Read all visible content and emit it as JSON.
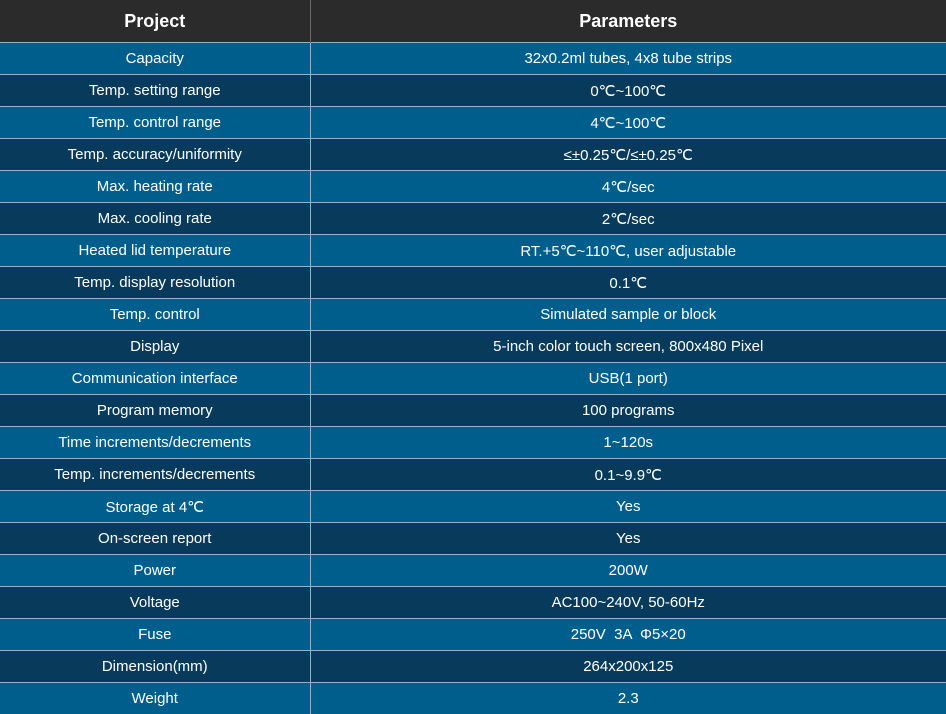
{
  "header": {
    "col1": "Project",
    "col2": "Parameters"
  },
  "rows": [
    {
      "project": "Capacity",
      "parameters": "32x0.2ml tubes, 4x8 tube strips"
    },
    {
      "project": "Temp. setting range",
      "parameters": "0℃~100℃"
    },
    {
      "project": "Temp. control range",
      "parameters": "4℃~100℃"
    },
    {
      "project": "Temp. accuracy/uniformity",
      "parameters": "≤±0.25℃/≤±0.25℃"
    },
    {
      "project": "Max. heating rate",
      "parameters": "4℃/sec"
    },
    {
      "project": "Max. cooling rate",
      "parameters": "2℃/sec"
    },
    {
      "project": "Heated lid temperature",
      "parameters": "RT.+5℃~110℃, user adjustable"
    },
    {
      "project": "Temp. display resolution",
      "parameters": "0.1℃"
    },
    {
      "project": "Temp. control",
      "parameters": "Simulated sample or block"
    },
    {
      "project": "Display",
      "parameters": "5-inch color touch screen, 800x480 Pixel"
    },
    {
      "project": "Communication interface",
      "parameters": "USB(1 port)"
    },
    {
      "project": "Program memory",
      "parameters": "100 programs"
    },
    {
      "project": "Time increments/decrements",
      "parameters": "1~120s"
    },
    {
      "project": "Temp. increments/decrements",
      "parameters": "0.1~9.9℃"
    },
    {
      "project": "Storage at 4℃",
      "parameters": "Yes"
    },
    {
      "project": "On-screen report",
      "parameters": "Yes"
    },
    {
      "project": "Power",
      "parameters": "200W"
    },
    {
      "project": "Voltage",
      "parameters": "AC100~240V, 50-60Hz"
    },
    {
      "project": "Fuse",
      "parameters": "250V  3A  Φ5×20"
    },
    {
      "project": "Dimension(mm)",
      "parameters": "264x200x125"
    },
    {
      "project": "Weight",
      "parameters": "2.3"
    }
  ],
  "colors": {
    "header_bg": "#2b2b2b",
    "row_light": "#005e8d",
    "row_dark": "#083a5b",
    "text": "#ffffff"
  }
}
